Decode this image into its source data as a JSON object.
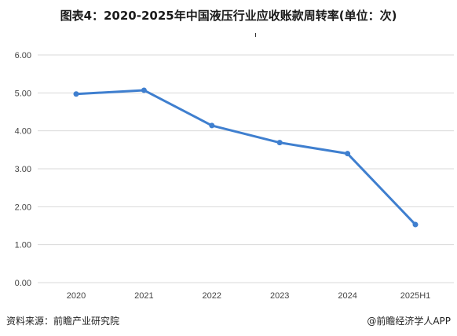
{
  "title": "图表4：2020-2025年中国液压行业应收账款周转率(单位：次)",
  "footer": {
    "source": "资料来源：前瞻产业研究院",
    "brand": "@前瞻经济学人APP"
  },
  "colors": {
    "line": "#3f7fcf",
    "grid": "#d9d9d9",
    "axis_text": "#444444"
  },
  "chart_data": {
    "type": "line",
    "title": "图表4：2020-2025年中国液压行业应收账款周转率(单位：次)",
    "xlabel": "",
    "ylabel": "",
    "categories": [
      "2020",
      "2021",
      "2022",
      "2023",
      "2024",
      "2025H1"
    ],
    "values": [
      4.97,
      5.07,
      4.14,
      3.69,
      3.4,
      1.53
    ],
    "ylim": [
      0,
      6
    ],
    "yticks": [
      "0.00",
      "1.00",
      "2.00",
      "3.00",
      "4.00",
      "5.00",
      "6.00"
    ],
    "grid": "horizontal",
    "legend": "none"
  }
}
